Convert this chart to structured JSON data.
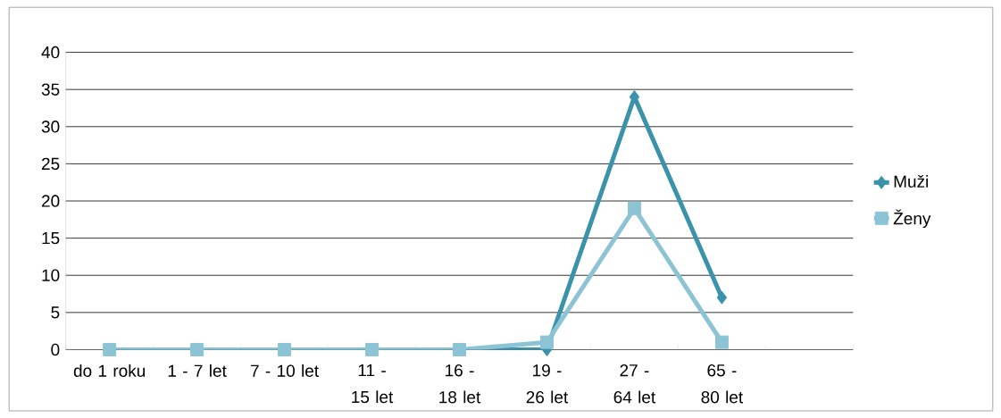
{
  "chart_data": {
    "type": "line",
    "categories": [
      "do 1 roku",
      "1 - 7 let",
      "7 - 10 let",
      "11 - 15 let",
      "16 - 18 let",
      "19 - 26 let",
      "27 - 64 let",
      "65 - 80 let",
      null
    ],
    "series": [
      {
        "name": "Muži",
        "color": "#3a93ab",
        "marker": "diamond",
        "values": [
          0,
          0,
          0,
          0,
          0,
          0,
          34,
          7,
          null
        ]
      },
      {
        "name": "Ženy",
        "color": "#8cc4d6",
        "marker": "square",
        "values": [
          0,
          0,
          0,
          0,
          0,
          1,
          19,
          1,
          null
        ]
      }
    ],
    "ylim": [
      0,
      40
    ],
    "yticks": [
      0,
      5,
      10,
      15,
      20,
      25,
      30,
      35,
      40
    ],
    "grid": "y",
    "legend": "right"
  }
}
